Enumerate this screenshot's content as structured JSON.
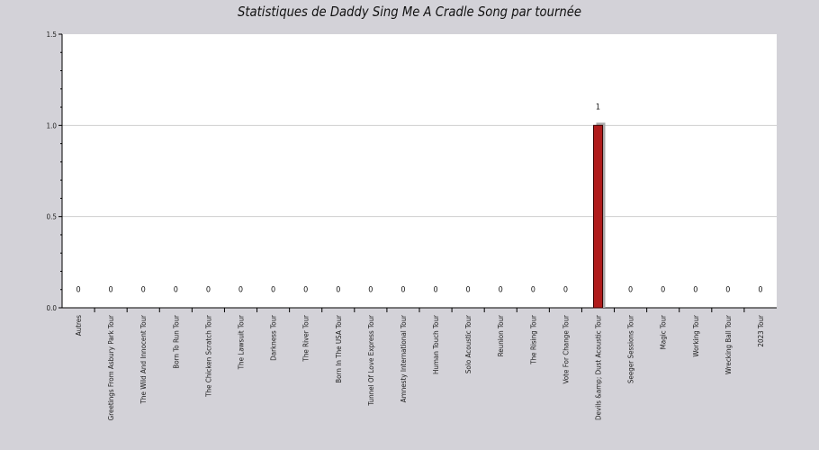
{
  "chart_data": {
    "type": "bar",
    "title": "Statistiques de Daddy Sing Me A Cradle Song par tournée",
    "xlabel": "",
    "ylabel": "",
    "ylim": [
      0,
      1.5
    ],
    "y_ticks": [
      0.0,
      0.5,
      1.0,
      1.5
    ],
    "y_tick_labels": [
      "0.0",
      "0.5",
      "1.0",
      "1.5"
    ],
    "grid": true,
    "categories": [
      "Autres",
      "Greetings From Asbury Park Tour",
      "The Wild And Innocent Tour",
      "Born To Run Tour",
      "The Chicken Scratch Tour",
      "The Lawsuit Tour",
      "Darkness Tour",
      "The River Tour",
      "Born In The USA Tour",
      "Tunnel Of Love Express Tour",
      "Amnesty International Tour",
      "Human Touch Tour",
      "Solo Acoustic Tour",
      "Reunion Tour",
      "The Rising Tour",
      "Vote For Change Tour",
      "Devils &amp; Dust Acoustic Tour",
      "Seeger Sessions Tour",
      "Magic Tour",
      "Working Tour",
      "Wrecking Ball Tour",
      "2023 Tour"
    ],
    "values": [
      0,
      0,
      0,
      0,
      0,
      0,
      0,
      0,
      0,
      0,
      0,
      0,
      0,
      0,
      0,
      0,
      1,
      0,
      0,
      0,
      0,
      0
    ],
    "data_labels": [
      "0",
      "0",
      "0",
      "0",
      "0",
      "0",
      "0",
      "0",
      "0",
      "0",
      "0",
      "0",
      "0",
      "0",
      "0",
      "0",
      "1",
      "0",
      "0",
      "0",
      "0",
      "0"
    ],
    "colors": {
      "bar": "#b01c1c",
      "bar_border": "#3a0000",
      "bar_shadow": "#a9a9a9",
      "plot_bg": "#ffffff",
      "page_bg": "#d3d2d8",
      "grid": "#cfcfcf"
    }
  }
}
